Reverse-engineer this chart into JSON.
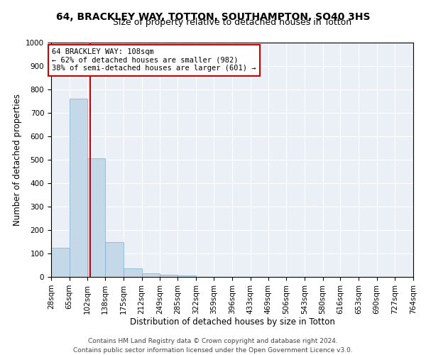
{
  "title_line1": "64, BRACKLEY WAY, TOTTON, SOUTHAMPTON, SO40 3HS",
  "title_line2": "Size of property relative to detached houses in Totton",
  "xlabel": "Distribution of detached houses by size in Totton",
  "ylabel": "Number of detached properties",
  "bin_edges": [
    28,
    65,
    102,
    138,
    175,
    212,
    249,
    285,
    322,
    359,
    396,
    433,
    469,
    506,
    543,
    580,
    616,
    653,
    690,
    727,
    764
  ],
  "bar_heights": [
    125,
    760,
    505,
    150,
    35,
    15,
    8,
    5,
    0,
    0,
    0,
    0,
    0,
    0,
    0,
    0,
    0,
    0,
    0,
    0
  ],
  "bar_color": "#c5d8e8",
  "bar_edge_color": "#7bafd4",
  "property_size": 108,
  "marker_line_color": "#cc0000",
  "annotation_line1": "64 BRACKLEY WAY: 108sqm",
  "annotation_line2": "← 62% of detached houses are smaller (982)",
  "annotation_line3": "38% of semi-detached houses are larger (601) →",
  "annotation_box_color": "#ffffff",
  "annotation_box_edge_color": "#cc0000",
  "ylim": [
    0,
    1000
  ],
  "yticks": [
    0,
    100,
    200,
    300,
    400,
    500,
    600,
    700,
    800,
    900,
    1000
  ],
  "background_color": "#eaf0f6",
  "footer_line1": "Contains HM Land Registry data © Crown copyright and database right 2024.",
  "footer_line2": "Contains public sector information licensed under the Open Government Licence v3.0.",
  "title_fontsize": 10,
  "subtitle_fontsize": 9,
  "xlabel_fontsize": 8.5,
  "ylabel_fontsize": 8.5,
  "tick_fontsize": 7.5,
  "annotation_fontsize": 7.5,
  "footer_fontsize": 6.5
}
